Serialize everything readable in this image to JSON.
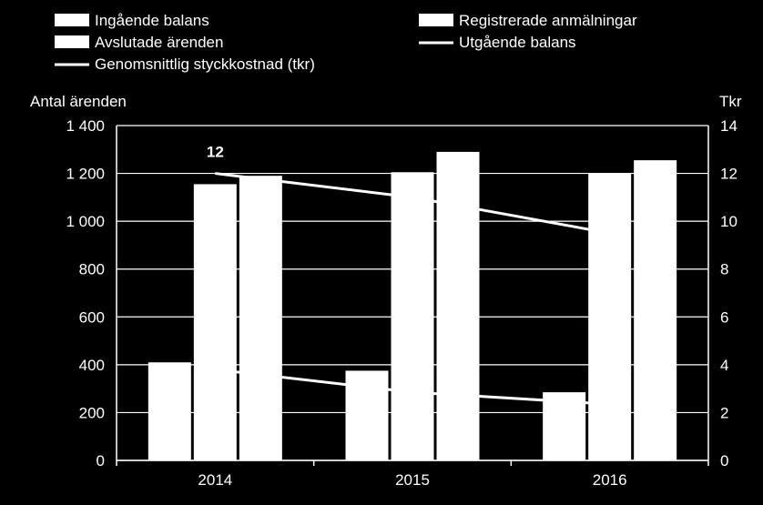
{
  "chart_data": {
    "type": "bar",
    "categories": [
      "2014",
      "2015",
      "2016"
    ],
    "series": [
      {
        "name": "Ingående balans",
        "kind": "bar",
        "axis": "left",
        "values": [
          410,
          375,
          285
        ]
      },
      {
        "name": "Registrerade anmälningar",
        "kind": "bar",
        "axis": "left",
        "values": [
          null,
          null,
          null
        ]
      },
      {
        "name": "Avslutade ärenden",
        "kind": "bar",
        "axis": "left",
        "values": [
          1155,
          1205,
          1200
        ]
      },
      {
        "name": "Utgående balans",
        "kind": "line",
        "axis": "left",
        "values": [
          380,
          285,
          235
        ]
      },
      {
        "name": "Genomsnittlig styckkostnad (tkr)",
        "kind": "line",
        "axis": "right",
        "values": [
          12,
          11,
          9.5
        ]
      }
    ],
    "extra_bars": {
      "name": "",
      "values": [
        1190,
        1290,
        1255
      ]
    },
    "data_labels": [
      {
        "series": "Genomsnittlig styckkostnad (tkr)",
        "category": "2014",
        "text": "12"
      }
    ],
    "ylabel": "Antal ärenden",
    "y2label": "Tkr",
    "ylim": [
      0,
      1400
    ],
    "y2lim": [
      0,
      14
    ],
    "yticks": [
      "0",
      "200",
      "400",
      "600",
      "800",
      "1 000",
      "1 200",
      "1 400"
    ],
    "y2ticks": [
      "0",
      "2",
      "4",
      "6",
      "8",
      "10",
      "12",
      "14"
    ],
    "legend_position": "top",
    "grid": true,
    "colors": {
      "background": "#000000",
      "bars": "#ffffff",
      "lines": "#ffffff",
      "grid": "#ffffff",
      "text": "#ffffff"
    }
  }
}
